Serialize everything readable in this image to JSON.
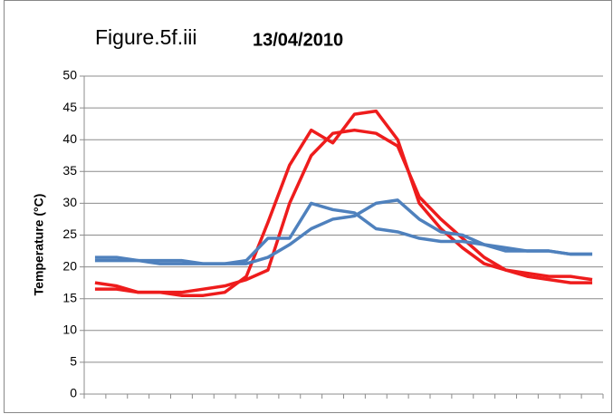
{
  "chart_data": {
    "type": "line",
    "title": "Figure.5f.iii",
    "subtitle": "13/04/2010",
    "y_label": "Temperature (°C)",
    "categories": [
      null,
      null,
      null,
      null,
      null,
      null,
      null,
      null,
      null,
      null,
      null,
      null,
      null,
      null,
      null,
      null,
      null,
      null,
      null,
      null,
      null,
      null,
      null,
      null
    ],
    "series": [
      {
        "color": "#ee1c1c",
        "values": [
          17.5,
          17,
          16,
          16,
          15.5,
          15.5,
          16,
          18.5,
          27,
          36,
          41.5,
          39.5,
          44,
          44.5,
          40,
          30,
          26,
          23,
          20.5,
          19.5,
          18.5,
          18,
          17.5,
          17.5
        ]
      },
      {
        "color": "#ee1c1c",
        "values": [
          16.5,
          16.5,
          16,
          16,
          16,
          16.5,
          17,
          18,
          19.5,
          30,
          37.5,
          41,
          41.5,
          41,
          39,
          31,
          27.5,
          24.5,
          21.5,
          19.5,
          19,
          18.5,
          18.5,
          18
        ]
      },
      {
        "color": "#4f81bd",
        "values": [
          21.5,
          21.5,
          21,
          21,
          21,
          20.5,
          20.5,
          21,
          24.5,
          24.5,
          30,
          29,
          28.5,
          26,
          25.5,
          24.5,
          24,
          24,
          23.5,
          22.5,
          22.5,
          22.5,
          22,
          22
        ]
      },
      {
        "color": "#4f81bd",
        "values": [
          21,
          21,
          21,
          20.5,
          20.5,
          20.5,
          20.5,
          20.5,
          21.5,
          23.5,
          26,
          27.5,
          28,
          30,
          30.5,
          27.5,
          25.5,
          25,
          23.5,
          23,
          22.5,
          22.5,
          22,
          22
        ]
      }
    ],
    "ylim": [
      0,
      50
    ],
    "yticks": [
      0,
      5,
      10,
      15,
      20,
      25,
      30,
      35,
      40,
      45,
      50
    ],
    "grid": true
  }
}
